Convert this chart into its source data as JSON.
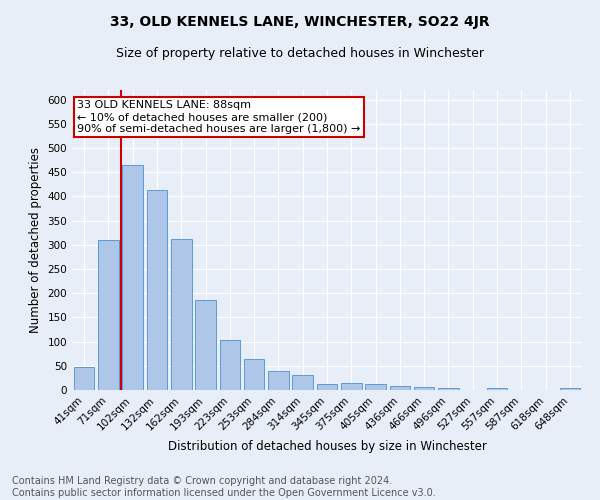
{
  "title": "33, OLD KENNELS LANE, WINCHESTER, SO22 4JR",
  "subtitle": "Size of property relative to detached houses in Winchester",
  "xlabel": "Distribution of detached houses by size in Winchester",
  "ylabel": "Number of detached properties",
  "categories": [
    "41sqm",
    "71sqm",
    "102sqm",
    "132sqm",
    "162sqm",
    "193sqm",
    "223sqm",
    "253sqm",
    "284sqm",
    "314sqm",
    "345sqm",
    "375sqm",
    "405sqm",
    "436sqm",
    "466sqm",
    "496sqm",
    "527sqm",
    "557sqm",
    "587sqm",
    "618sqm",
    "648sqm"
  ],
  "values": [
    47,
    311,
    465,
    413,
    312,
    185,
    104,
    65,
    39,
    30,
    12,
    15,
    12,
    9,
    6,
    4,
    0,
    5,
    0,
    0,
    5
  ],
  "bar_color": "#aec6e8",
  "bar_edge_color": "#5b9bd5",
  "background_color": "#e8eef7",
  "grid_color": "#ffffff",
  "vline_x": 1,
  "vline_color": "#cc0000",
  "annotation_text": "33 OLD KENNELS LANE: 88sqm\n← 10% of detached houses are smaller (200)\n90% of semi-detached houses are larger (1,800) →",
  "annotation_box_color": "#ffffff",
  "annotation_box_edge": "#cc0000",
  "ylim": [
    0,
    620
  ],
  "yticks": [
    0,
    50,
    100,
    150,
    200,
    250,
    300,
    350,
    400,
    450,
    500,
    550,
    600
  ],
  "footnote": "Contains HM Land Registry data © Crown copyright and database right 2024.\nContains public sector information licensed under the Open Government Licence v3.0.",
  "title_fontsize": 10,
  "subtitle_fontsize": 9,
  "axis_label_fontsize": 8.5,
  "tick_fontsize": 7.5,
  "annotation_fontsize": 8,
  "footnote_fontsize": 7
}
